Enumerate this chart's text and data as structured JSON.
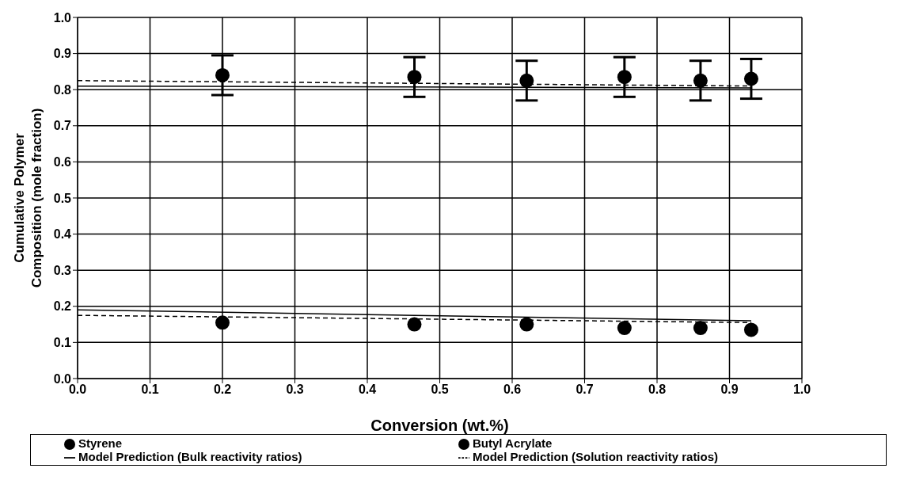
{
  "chart_data": {
    "type": "scatter",
    "xlabel": "Conversion (wt.%)",
    "ylabel": "Cumulative Polymer Composition (mole fraction)",
    "xlim": [
      0,
      1
    ],
    "xticks": [
      {
        "value": 0,
        "label": "0.0"
      },
      0.1,
      0.2,
      0.3,
      0.4,
      0.5,
      0.6,
      0.7,
      0.8,
      0.9,
      {
        "value": 1,
        "label": "1.0"
      }
    ],
    "ylim": [
      0,
      1
    ],
    "yticks": [
      {
        "value": 0,
        "label": "0.0"
      },
      0.1,
      0.2,
      0.3,
      0.4,
      0.5,
      0.6,
      0.7,
      0.8,
      0.9,
      {
        "value": 1,
        "label": "1.0"
      }
    ],
    "grid": true,
    "legend": "bottom",
    "series": [
      {
        "name": "Styrene",
        "marker": "circle",
        "color": "#000000",
        "x": [
          0.2,
          0.465,
          0.62,
          0.755,
          0.86,
          0.93
        ],
        "values": [
          0.84,
          0.835,
          0.825,
          0.835,
          0.825,
          0.83
        ],
        "errors": [
          0.055,
          0.055,
          0.055,
          0.055,
          0.055,
          0.055
        ]
      },
      {
        "name": "Butyl Acrylate",
        "marker": "circle",
        "color": "#000000",
        "x": [
          0.2,
          0.465,
          0.62,
          0.755,
          0.86,
          0.93
        ],
        "values": [
          0.155,
          0.15,
          0.15,
          0.14,
          0.14,
          0.135
        ]
      },
      {
        "name": "Model Prediction (Bulk reactivity ratios)",
        "type": "line",
        "line_style": "solid",
        "color": "#000000",
        "x": [
          0,
          0.93
        ],
        "values": [
          0.81,
          0.805
        ]
      },
      {
        "type": "line",
        "line_style": "solid",
        "color": "#000000",
        "x": [
          0,
          0.93
        ],
        "values": [
          0.19,
          0.16
        ]
      },
      {
        "name": "Model Prediction (Solution reactivity ratios)",
        "type": "line",
        "line_style": "dashed",
        "color": "#000000",
        "x": [
          0,
          0.93
        ],
        "values": [
          0.825,
          0.81
        ]
      },
      {
        "type": "line",
        "line_style": "dashed",
        "color": "#000000",
        "x": [
          0,
          0.93
        ],
        "values": [
          0.175,
          0.155
        ]
      }
    ]
  }
}
